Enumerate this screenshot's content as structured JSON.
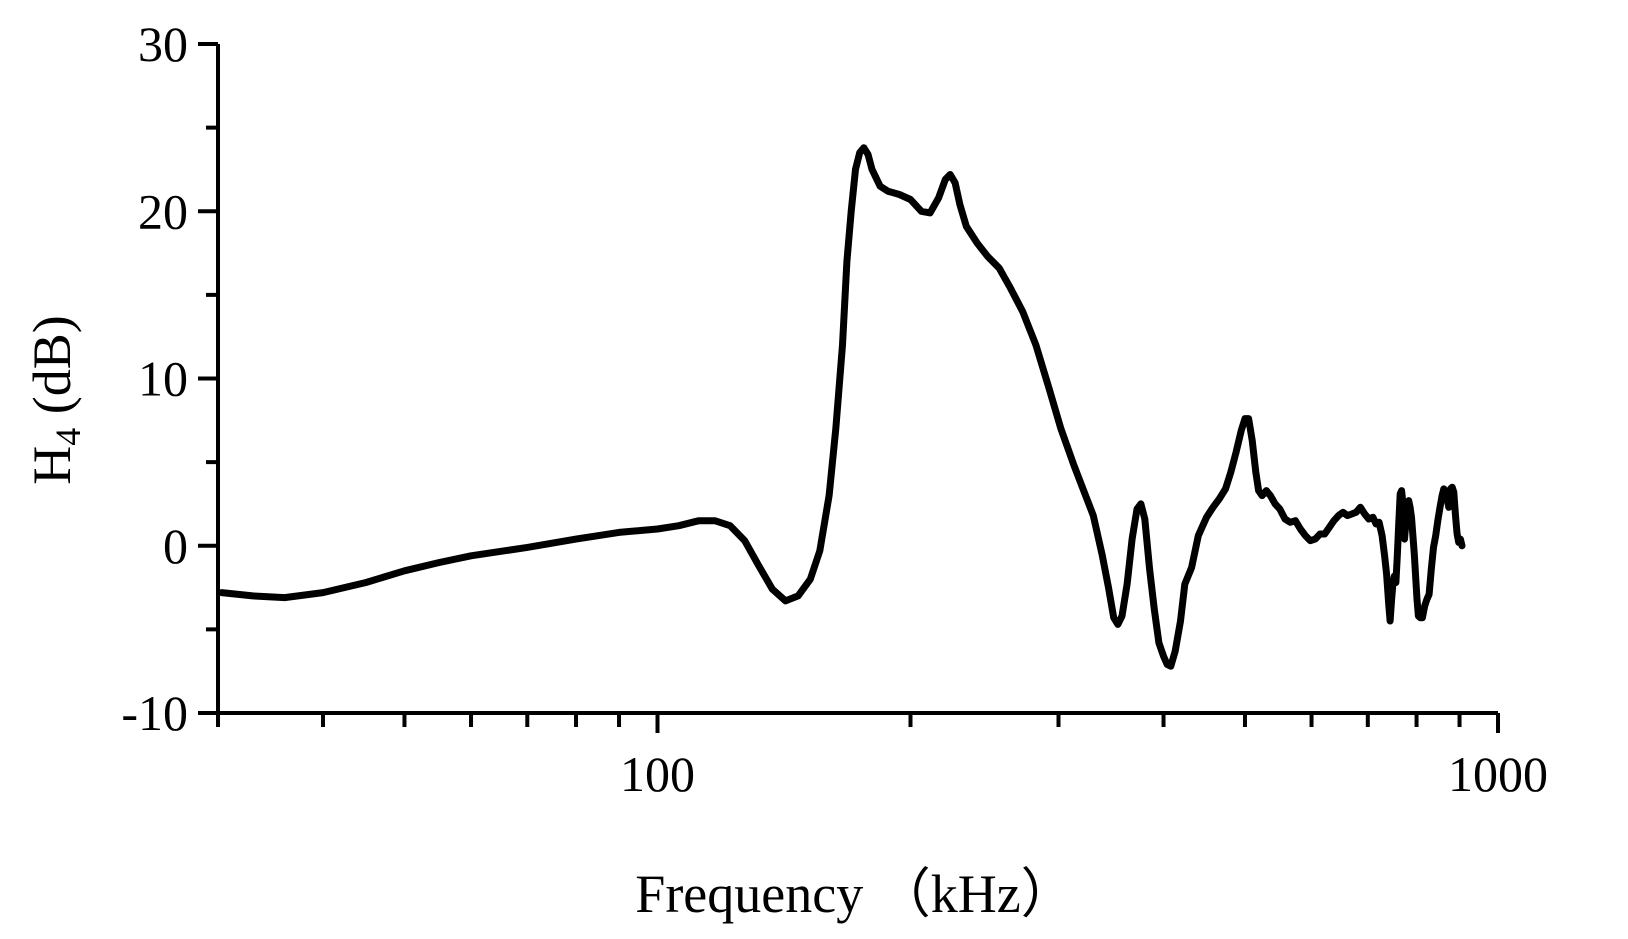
{
  "chart_data": {
    "type": "line",
    "title": "",
    "xlabel": "Frequency （kHz）",
    "ylabel_main": "H",
    "ylabel_sub": "4",
    "ylabel_unit": " (dB)",
    "x_scale": "log",
    "xlim": [
      30,
      1000
    ],
    "ylim": [
      -10,
      30
    ],
    "x_major_ticks": [
      100,
      1000
    ],
    "x_tick_labels": [
      "100",
      "1000"
    ],
    "x_minor_ticks": [
      30,
      40,
      50,
      60,
      70,
      80,
      90,
      200,
      300,
      400,
      500,
      600,
      700,
      800,
      900
    ],
    "y_major_ticks": [
      -10,
      0,
      10,
      20,
      30
    ],
    "y_tick_labels": [
      "-10",
      "0",
      "10",
      "20",
      "30"
    ],
    "y_minor_ticks": [
      -5,
      5,
      15,
      25
    ],
    "grid": false,
    "legend": "none",
    "series": [
      {
        "color": "#000000",
        "points": [
          [
            30.3,
            -2.8
          ],
          [
            33,
            -3.0
          ],
          [
            36,
            -3.1
          ],
          [
            40,
            -2.8
          ],
          [
            45,
            -2.2
          ],
          [
            50,
            -1.5
          ],
          [
            55,
            -1.0
          ],
          [
            60,
            -0.6
          ],
          [
            70,
            -0.1
          ],
          [
            80,
            0.4
          ],
          [
            90,
            0.8
          ],
          [
            100,
            1.0
          ],
          [
            106,
            1.2
          ],
          [
            112,
            1.5
          ],
          [
            117,
            1.5
          ],
          [
            122,
            1.2
          ],
          [
            127,
            0.3
          ],
          [
            132,
            -1.2
          ],
          [
            137,
            -2.6
          ],
          [
            142,
            -3.3
          ],
          [
            147,
            -3.0
          ],
          [
            152,
            -2.0
          ],
          [
            156,
            -0.3
          ],
          [
            160,
            3.0
          ],
          [
            163,
            7.0
          ],
          [
            166,
            12.0
          ],
          [
            168,
            17.0
          ],
          [
            170,
            20.0
          ],
          [
            172,
            22.5
          ],
          [
            174,
            23.5
          ],
          [
            176,
            23.8
          ],
          [
            178,
            23.4
          ],
          [
            180,
            22.5
          ],
          [
            184,
            21.5
          ],
          [
            188,
            21.2
          ],
          [
            194,
            21.0
          ],
          [
            200,
            20.7
          ],
          [
            206,
            20.0
          ],
          [
            211,
            19.9
          ],
          [
            216,
            20.8
          ],
          [
            220,
            21.9
          ],
          [
            223,
            22.2
          ],
          [
            226,
            21.7
          ],
          [
            229,
            20.4
          ],
          [
            233,
            19.1
          ],
          [
            240,
            18.1
          ],
          [
            247,
            17.3
          ],
          [
            255,
            16.6
          ],
          [
            263,
            15.4
          ],
          [
            272,
            14.0
          ],
          [
            282,
            12.0
          ],
          [
            292,
            9.5
          ],
          [
            302,
            7.0
          ],
          [
            313,
            4.8
          ],
          [
            322,
            3.2
          ],
          [
            330,
            1.8
          ],
          [
            338,
            -0.5
          ],
          [
            344,
            -2.5
          ],
          [
            349,
            -4.3
          ],
          [
            353,
            -4.7
          ],
          [
            357,
            -4.2
          ],
          [
            362,
            -2.3
          ],
          [
            367,
            0.4
          ],
          [
            372,
            2.2
          ],
          [
            376,
            2.5
          ],
          [
            380,
            1.6
          ],
          [
            385,
            -1.4
          ],
          [
            390,
            -3.8
          ],
          [
            395,
            -5.8
          ],
          [
            400,
            -6.6
          ],
          [
            404,
            -7.1
          ],
          [
            408,
            -7.2
          ],
          [
            413,
            -6.3
          ],
          [
            419,
            -4.5
          ],
          [
            424,
            -2.3
          ],
          [
            432,
            -1.3
          ],
          [
            440,
            0.6
          ],
          [
            450,
            1.7
          ],
          [
            458,
            2.3
          ],
          [
            466,
            2.8
          ],
          [
            474,
            3.4
          ],
          [
            481,
            4.4
          ],
          [
            488,
            5.6
          ],
          [
            495,
            6.9
          ],
          [
            500,
            7.6
          ],
          [
            505,
            7.6
          ],
          [
            510,
            6.3
          ],
          [
            515,
            4.4
          ],
          [
            519,
            3.3
          ],
          [
            524,
            3.0
          ],
          [
            530,
            3.3
          ],
          [
            536,
            3.0
          ],
          [
            543,
            2.5
          ],
          [
            550,
            2.2
          ],
          [
            558,
            1.6
          ],
          [
            566,
            1.4
          ],
          [
            574,
            1.5
          ],
          [
            582,
            1.0
          ],
          [
            590,
            0.6
          ],
          [
            598,
            0.3
          ],
          [
            606,
            0.4
          ],
          [
            614,
            0.7
          ],
          [
            622,
            0.7
          ],
          [
            630,
            1.1
          ],
          [
            638,
            1.5
          ],
          [
            646,
            1.8
          ],
          [
            654,
            2.0
          ],
          [
            662,
            1.8
          ],
          [
            670,
            1.9
          ],
          [
            678,
            2.0
          ],
          [
            686,
            2.3
          ],
          [
            694,
            1.9
          ],
          [
            702,
            1.6
          ],
          [
            710,
            1.7
          ],
          [
            716,
            1.3
          ],
          [
            722,
            1.4
          ],
          [
            728,
            0.6
          ],
          [
            733,
            -0.6
          ],
          [
            737,
            -1.7
          ],
          [
            741,
            -3.4
          ],
          [
            744,
            -4.5
          ],
          [
            747,
            -3.3
          ],
          [
            750,
            -2.2
          ],
          [
            753,
            -1.8
          ],
          [
            756,
            -2.2
          ],
          [
            759,
            -0.6
          ],
          [
            762,
            1.4
          ],
          [
            765,
            3.1
          ],
          [
            768,
            3.3
          ],
          [
            771,
            2.4
          ],
          [
            774,
            0.4
          ],
          [
            777,
            1.4
          ],
          [
            780,
            2.5
          ],
          [
            783,
            2.7
          ],
          [
            786,
            2.3
          ],
          [
            789,
            1.7
          ],
          [
            792,
            0.6
          ],
          [
            795,
            -0.5
          ],
          [
            798,
            -1.8
          ],
          [
            801,
            -3.2
          ],
          [
            804,
            -4.2
          ],
          [
            808,
            -4.3
          ],
          [
            813,
            -4.3
          ],
          [
            818,
            -3.6
          ],
          [
            823,
            -3.2
          ],
          [
            828,
            -2.9
          ],
          [
            833,
            -1.4
          ],
          [
            838,
            -0.1
          ],
          [
            843,
            0.6
          ],
          [
            848,
            1.5
          ],
          [
            853,
            2.3
          ],
          [
            858,
            3.0
          ],
          [
            862,
            3.4
          ],
          [
            866,
            3.2
          ],
          [
            870,
            2.8
          ],
          [
            874,
            2.3
          ],
          [
            878,
            3.4
          ],
          [
            882,
            3.5
          ],
          [
            886,
            3.2
          ],
          [
            890,
            1.8
          ],
          [
            894,
            0.7
          ],
          [
            898,
            0.2
          ],
          [
            902,
            0.4
          ],
          [
            906,
            0.0
          ]
        ]
      }
    ]
  }
}
